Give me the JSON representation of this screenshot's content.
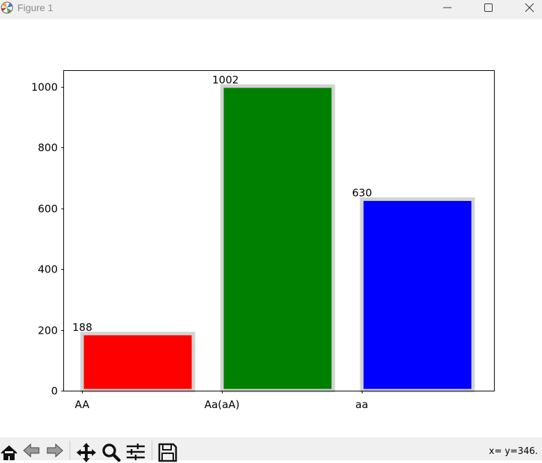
{
  "window": {
    "title": "Figure 1",
    "minimize_icon": "minimize-icon",
    "maximize_icon": "maximize-icon",
    "close_icon": "close-icon"
  },
  "toolbar": {
    "tools": [
      "home-icon",
      "back-icon",
      "forward-icon",
      "pan-icon",
      "zoom-icon",
      "configure-subplots-icon",
      "save-icon"
    ],
    "coords_text": "x= y=346."
  },
  "chart_data": {
    "type": "bar",
    "categories": [
      "AA",
      "Aa(aA)",
      "aa"
    ],
    "values": [
      188,
      1002,
      630
    ],
    "colors": [
      "#ff0000",
      "#008000",
      "#0000ff"
    ],
    "bar_outline_color": "#d3d3d3",
    "data_labels": [
      "188",
      "1002",
      "630"
    ],
    "yticks": [
      0,
      200,
      400,
      600,
      800,
      1000
    ],
    "ytick_labels": [
      "0",
      "200",
      "400",
      "600",
      "800",
      "1000"
    ],
    "ylim": [
      0,
      1052
    ],
    "title": "",
    "xlabel": "",
    "ylabel": ""
  }
}
